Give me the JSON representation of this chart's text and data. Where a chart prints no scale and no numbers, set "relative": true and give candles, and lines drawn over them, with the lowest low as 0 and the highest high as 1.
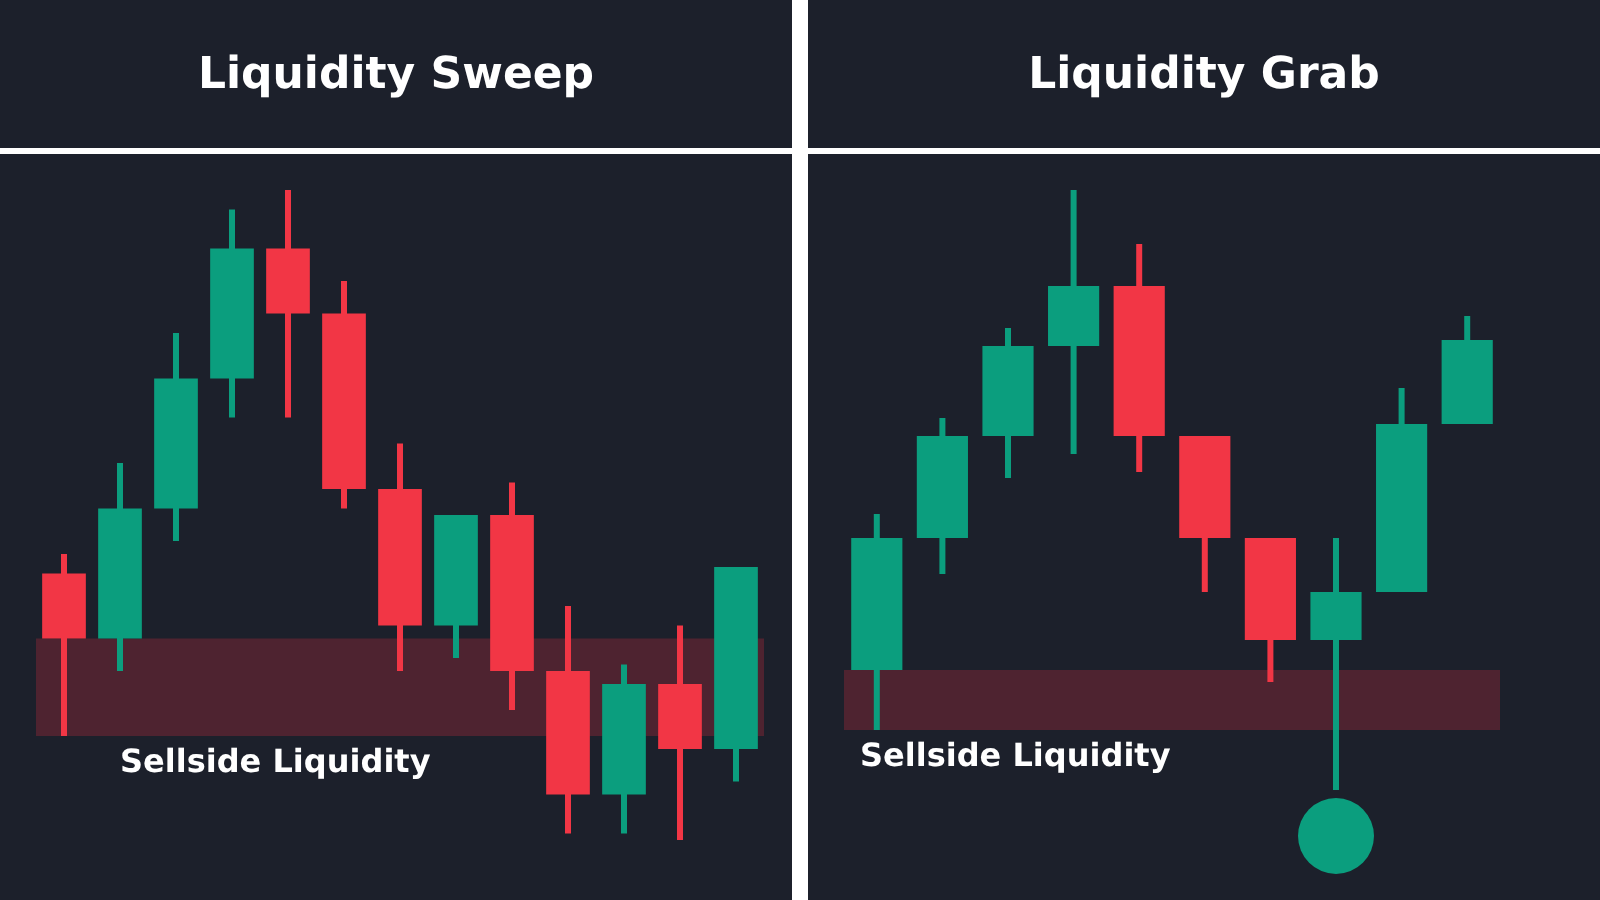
{
  "chart_data": [
    {
      "type": "candlestick",
      "title": "Liquidity Sweep",
      "relative": true,
      "tick_labels": false,
      "categories": [
        null,
        null,
        null,
        null,
        null,
        null,
        null,
        null,
        null,
        null,
        null,
        null,
        null
      ],
      "ohlc": [
        [
          0.41,
          0.44,
          0.16,
          0.31
        ],
        [
          0.31,
          0.58,
          0.26,
          0.51
        ],
        [
          0.51,
          0.78,
          0.46,
          0.71
        ],
        [
          0.71,
          0.97,
          0.65,
          0.91
        ],
        [
          0.91,
          1,
          0.65,
          0.81
        ],
        [
          0.81,
          0.86,
          0.51,
          0.54
        ],
        [
          0.54,
          0.61,
          0.26,
          0.33
        ],
        [
          0.33,
          0.5,
          0.28,
          0.5
        ],
        [
          0.5,
          0.55,
          0.2,
          0.26
        ],
        [
          0.26,
          0.36,
          0.01,
          0.07
        ],
        [
          0.07,
          0.27,
          0.01,
          0.24
        ],
        [
          0.24,
          0.33,
          0,
          0.14
        ],
        [
          0.14,
          0.42,
          0.09,
          0.42
        ]
      ],
      "colors": [
        "#f23645",
        "#0b9e7e",
        "#0b9e7e",
        "#0b9e7e",
        "#f23645",
        "#f23645",
        "#f23645",
        "#0b9e7e",
        "#f23645",
        "#f23645",
        "#0b9e7e",
        "#f23645",
        "#0b9e7e"
      ],
      "bands": [
        {
          "axis": "y",
          "from": 0.16,
          "to": 0.31,
          "label": "Sellside Liquidity",
          "color": "#4e2330"
        }
      ]
    },
    {
      "type": "candlestick",
      "title": "Liquidity Grab",
      "relative": true,
      "tick_labels": false,
      "categories": [
        null,
        null,
        null,
        null,
        null,
        null,
        null,
        null,
        null,
        null
      ],
      "ohlc": [
        [
          0.2,
          0.46,
          0.1,
          0.42
        ],
        [
          0.42,
          0.62,
          0.36,
          0.59
        ],
        [
          0.59,
          0.77,
          0.52,
          0.74
        ],
        [
          0.74,
          1,
          0.56,
          0.84
        ],
        [
          0.84,
          0.91,
          0.53,
          0.59
        ],
        [
          0.59,
          0.59,
          0.33,
          0.42
        ],
        [
          0.42,
          0.42,
          0.18,
          0.25
        ],
        [
          0.25,
          0.42,
          0,
          0.33
        ],
        [
          0.33,
          0.67,
          0.33,
          0.61
        ],
        [
          0.61,
          0.79,
          0.61,
          0.75
        ]
      ],
      "colors": [
        "#0b9e7e",
        "#0b9e7e",
        "#0b9e7e",
        "#0b9e7e",
        "#f23645",
        "#f23645",
        "#f23645",
        "#0b9e7e",
        "#0b9e7e",
        "#0b9e7e"
      ],
      "bands": [
        {
          "axis": "y",
          "from": 0.1,
          "to": 0.2,
          "label": "Sellside Liquidity",
          "color": "#4e2330"
        }
      ]
    }
  ]
}
